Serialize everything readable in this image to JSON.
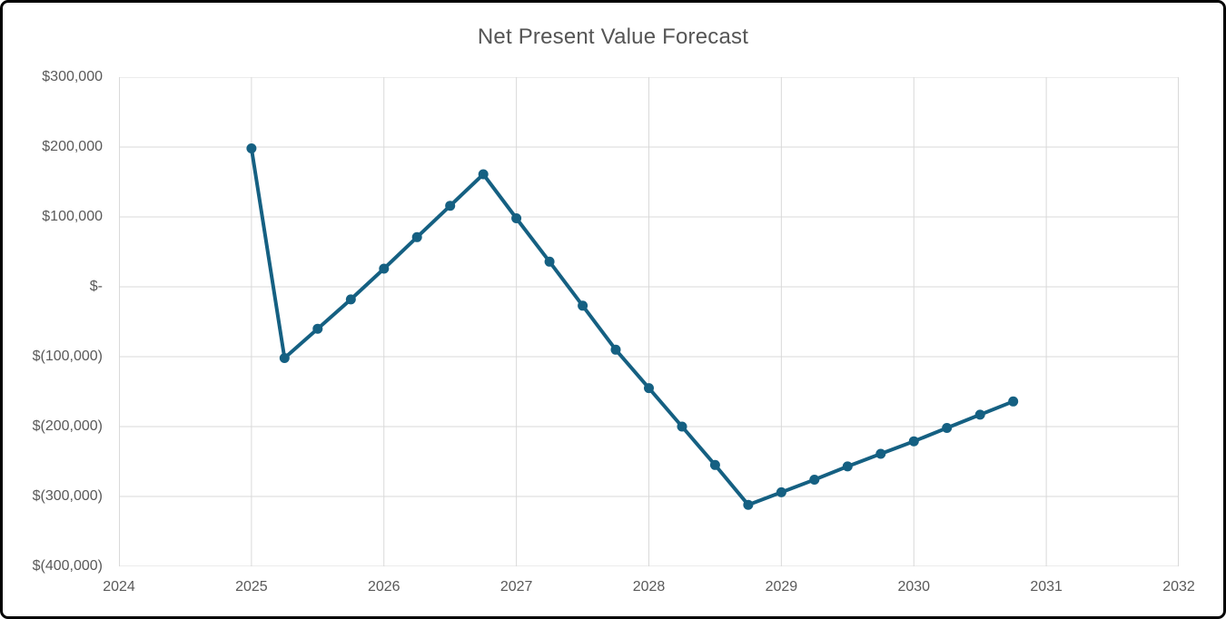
{
  "chart_data": {
    "type": "line",
    "title": "Net Present Value Forecast",
    "xlabel": "",
    "ylabel": "",
    "grid": true,
    "legend": "none",
    "xlim": [
      2024,
      2032
    ],
    "ylim": [
      -400000,
      300000
    ],
    "x_axis": {
      "tick_values": [
        2024,
        2025,
        2026,
        2027,
        2028,
        2029,
        2030,
        2031,
        2032
      ],
      "tick_labels": [
        "2024",
        "2025",
        "2026",
        "2027",
        "2028",
        "2029",
        "2030",
        "2031",
        "2032"
      ]
    },
    "y_axis": {
      "tick_values": [
        300000,
        200000,
        100000,
        0,
        -100000,
        -200000,
        -300000,
        -400000
      ],
      "tick_labels": [
        "$300,000",
        "$200,000",
        "$100,000",
        "$-",
        "$(100,000)",
        "$(200,000)",
        "$(300,000)",
        "$(400,000)"
      ]
    },
    "series": [
      {
        "name": "Net Present Value",
        "x": [
          2025.0,
          2025.25,
          2025.5,
          2025.75,
          2026.0,
          2026.25,
          2026.5,
          2026.75,
          2027.0,
          2027.25,
          2027.5,
          2027.75,
          2028.0,
          2028.25,
          2028.5,
          2028.75,
          2029.0,
          2029.25,
          2029.5,
          2029.75,
          2030.0,
          2030.25,
          2030.5,
          2030.75
        ],
        "values": [
          198000,
          -102000,
          -60000,
          -18000,
          26000,
          71000,
          116000,
          161000,
          98000,
          36000,
          -27000,
          -90000,
          -145000,
          -200000,
          -255000,
          -312000,
          -294000,
          -276000,
          -257000,
          -239000,
          -221000,
          -202000,
          -183000,
          -164000
        ]
      }
    ]
  },
  "styles": {
    "line_color": "#156082",
    "marker_color": "#156082",
    "grid_color": "#D9D9D9",
    "axis_text_color": "#595959",
    "title_color": "#555555",
    "frame_border_color": "#000000",
    "background": "#FFFFFF"
  }
}
